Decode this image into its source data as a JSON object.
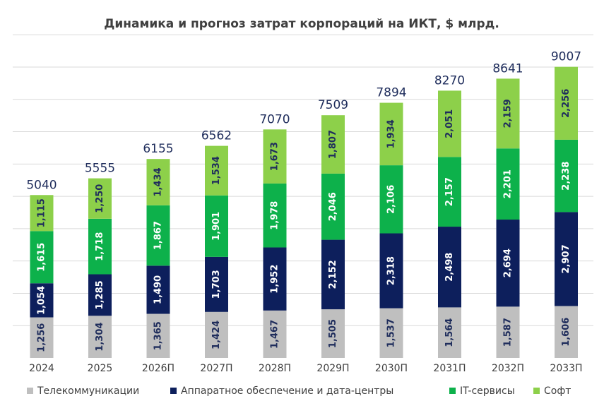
{
  "chart_data": {
    "type": "bar",
    "stacked": true,
    "title": "Динамика и прогноз затрат корпораций на ИКТ,  $ млрд.",
    "categories": [
      "2024",
      "2025",
      "2026П",
      "2027П",
      "2028П",
      "2029П",
      "2030П",
      "2031П",
      "2032П",
      "2033П"
    ],
    "totals": [
      "5040",
      "5555",
      "6155",
      "6562",
      "7070",
      "7509",
      "7894",
      "8270",
      "8641",
      "9007"
    ],
    "series": [
      {
        "name": "Телекоммуникации",
        "color": "#bfbfbf",
        "label_color": "#1f2d5c",
        "values": [
          1256,
          1304,
          1365,
          1424,
          1467,
          1505,
          1537,
          1564,
          1587,
          1606
        ],
        "labels": [
          "1,256",
          "1,304",
          "1,365",
          "1,424",
          "1,467",
          "1,505",
          "1,537",
          "1,564",
          "1,587",
          "1,606"
        ]
      },
      {
        "name": "Аппаратное обеспечение и дата-центры",
        "color": "#0d1f5c",
        "label_color": "#ffffff",
        "values": [
          1054,
          1285,
          1490,
          1703,
          1952,
          2152,
          2318,
          2498,
          2694,
          2907
        ],
        "labels": [
          "1,054",
          "1,285",
          "1,490",
          "1,703",
          "1,952",
          "2,152",
          "2,318",
          "2,498",
          "2,694",
          "2,907"
        ]
      },
      {
        "name": "IT-сервисы",
        "color": "#0db14b",
        "label_color": "#ffffff",
        "values": [
          1615,
          1718,
          1867,
          1901,
          1978,
          2046,
          2106,
          2157,
          2201,
          2238
        ],
        "labels": [
          "1,615",
          "1,718",
          "1,867",
          "1,901",
          "1,978",
          "2,046",
          "2,106",
          "2,157",
          "2,201",
          "2,238"
        ]
      },
      {
        "name": "Софт",
        "color": "#8dd04a",
        "label_color": "#1f2d5c",
        "values": [
          1115,
          1250,
          1434,
          1534,
          1673,
          1807,
          1934,
          2051,
          2159,
          2256
        ],
        "labels": [
          "1,115",
          "1,250",
          "1,434",
          "1,534",
          "1,673",
          "1,807",
          "1,934",
          "2,051",
          "2,159",
          "2,256"
        ]
      }
    ],
    "ylim": [
      0,
      10000
    ],
    "gridlines": true,
    "legend_position": "bottom"
  }
}
